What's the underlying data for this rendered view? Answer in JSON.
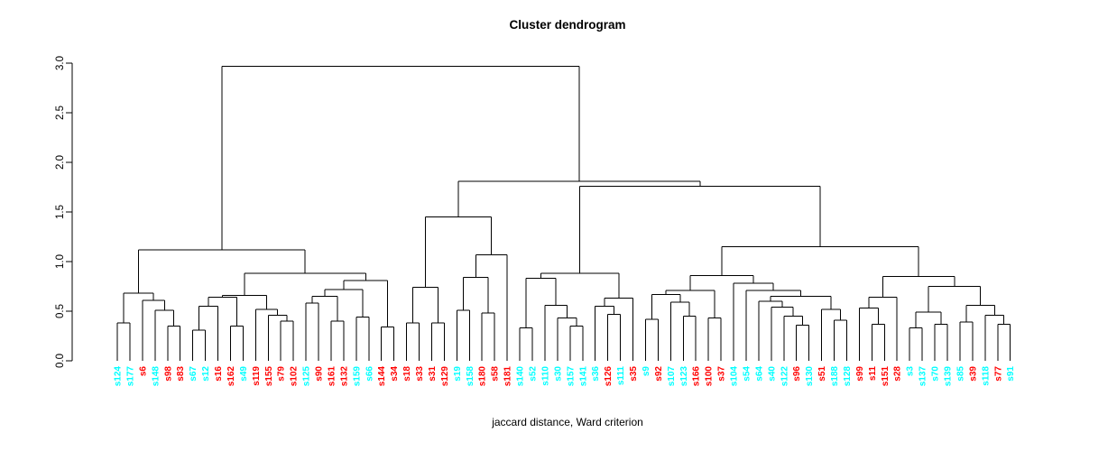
{
  "chart_data": {
    "type": "dendrogram",
    "title": "Cluster dendrogram",
    "caption": "jaccard distance, Ward criterion",
    "y_axis": {
      "ticks": [
        "0.0",
        "0.5",
        "1.0",
        "1.5",
        "2.0",
        "2.5",
        "3.0"
      ],
      "ylim": [
        0.0,
        3.0
      ],
      "grid": false
    },
    "legend_position": "none",
    "line_color": "#000000",
    "leaf_colors": {
      "red": "#FF0000",
      "cyan": "#00FFFF"
    },
    "leaves": [
      {
        "label": "s124",
        "color": "cyan"
      },
      {
        "label": "s177",
        "color": "cyan"
      },
      {
        "label": "s6",
        "color": "red"
      },
      {
        "label": "s148",
        "color": "cyan"
      },
      {
        "label": "s98",
        "color": "red"
      },
      {
        "label": "s83",
        "color": "red"
      },
      {
        "label": "s67",
        "color": "cyan"
      },
      {
        "label": "s12",
        "color": "cyan"
      },
      {
        "label": "s16",
        "color": "red"
      },
      {
        "label": "s162",
        "color": "red"
      },
      {
        "label": "s49",
        "color": "cyan"
      },
      {
        "label": "s119",
        "color": "red"
      },
      {
        "label": "s155",
        "color": "red"
      },
      {
        "label": "s79",
        "color": "red"
      },
      {
        "label": "s102",
        "color": "red"
      },
      {
        "label": "s125",
        "color": "cyan"
      },
      {
        "label": "s90",
        "color": "red"
      },
      {
        "label": "s161",
        "color": "red"
      },
      {
        "label": "s132",
        "color": "red"
      },
      {
        "label": "s159",
        "color": "cyan"
      },
      {
        "label": "s66",
        "color": "cyan"
      },
      {
        "label": "s144",
        "color": "red"
      },
      {
        "label": "s34",
        "color": "red"
      },
      {
        "label": "s18",
        "color": "red"
      },
      {
        "label": "s33",
        "color": "red"
      },
      {
        "label": "s31",
        "color": "red"
      },
      {
        "label": "s129",
        "color": "red"
      },
      {
        "label": "s19",
        "color": "cyan"
      },
      {
        "label": "s158",
        "color": "cyan"
      },
      {
        "label": "s180",
        "color": "red"
      },
      {
        "label": "s58",
        "color": "red"
      },
      {
        "label": "s181",
        "color": "red"
      },
      {
        "label": "s140",
        "color": "cyan"
      },
      {
        "label": "s52",
        "color": "cyan"
      },
      {
        "label": "s110",
        "color": "cyan"
      },
      {
        "label": "s30",
        "color": "cyan"
      },
      {
        "label": "s157",
        "color": "cyan"
      },
      {
        "label": "s141",
        "color": "cyan"
      },
      {
        "label": "s36",
        "color": "cyan"
      },
      {
        "label": "s126",
        "color": "red"
      },
      {
        "label": "s111",
        "color": "cyan"
      },
      {
        "label": "s35",
        "color": "red"
      },
      {
        "label": "s9",
        "color": "cyan"
      },
      {
        "label": "s92",
        "color": "red"
      },
      {
        "label": "s107",
        "color": "cyan"
      },
      {
        "label": "s123",
        "color": "cyan"
      },
      {
        "label": "s166",
        "color": "red"
      },
      {
        "label": "s100",
        "color": "red"
      },
      {
        "label": "s37",
        "color": "red"
      },
      {
        "label": "s104",
        "color": "cyan"
      },
      {
        "label": "s54",
        "color": "cyan"
      },
      {
        "label": "s64",
        "color": "cyan"
      },
      {
        "label": "s40",
        "color": "cyan"
      },
      {
        "label": "s122",
        "color": "cyan"
      },
      {
        "label": "s96",
        "color": "red"
      },
      {
        "label": "s130",
        "color": "cyan"
      },
      {
        "label": "s51",
        "color": "red"
      },
      {
        "label": "s188",
        "color": "cyan"
      },
      {
        "label": "s128",
        "color": "cyan"
      },
      {
        "label": "s99",
        "color": "red"
      },
      {
        "label": "s11",
        "color": "red"
      },
      {
        "label": "s151",
        "color": "red"
      },
      {
        "label": "s28",
        "color": "red"
      },
      {
        "label": "s3",
        "color": "cyan"
      },
      {
        "label": "s137",
        "color": "cyan"
      },
      {
        "label": "s70",
        "color": "cyan"
      },
      {
        "label": "s139",
        "color": "cyan"
      },
      {
        "label": "s85",
        "color": "cyan"
      },
      {
        "label": "s39",
        "color": "red"
      },
      {
        "label": "s118",
        "color": "cyan"
      },
      {
        "label": "s77",
        "color": "red"
      },
      {
        "label": "s91",
        "color": "cyan"
      }
    ],
    "tree": [
      2.97,
      [
        1.12,
        [
          0.68,
          [
            0.38,
            0,
            1
          ],
          [
            0.61,
            2,
            [
              0.51,
              3,
              [
                0.35,
                4,
                5
              ]
            ]
          ]
        ],
        [
          0.88,
          [
            0.66,
            [
              0.64,
              [
                0.55,
                [
                  0.31,
                  6,
                  7
                ],
                8
              ],
              [
                0.35,
                9,
                10
              ]
            ],
            [
              0.52,
              11,
              [
                0.46,
                12,
                [
                  0.4,
                  13,
                  14
                ]
              ]
            ]
          ],
          [
            0.81,
            [
              0.72,
              [
                0.65,
                [
                  0.58,
                  15,
                  16
                ],
                [
                  0.4,
                  17,
                  18
                ]
              ],
              [
                0.44,
                19,
                20
              ]
            ],
            [
              0.34,
              21,
              22
            ]
          ]
        ]
      ],
      [
        1.81,
        [
          1.45,
          [
            0.74,
            [
              0.38,
              23,
              24
            ],
            [
              0.38,
              25,
              26
            ]
          ],
          [
            1.07,
            [
              0.84,
              [
                0.51,
                27,
                28
              ],
              [
                0.48,
                29,
                30
              ]
            ],
            31
          ]
        ],
        [
          1.76,
          [
            0.88,
            [
              0.83,
              [
                0.33,
                32,
                33
              ],
              [
                0.56,
                34,
                [
                  0.43,
                  35,
                  [
                    0.35,
                    36,
                    37
                  ]
                ]
              ]
            ],
            [
              0.63,
              [
                0.55,
                38,
                [
                  0.47,
                  39,
                  40
                ]
              ],
              41
            ]
          ],
          [
            1.15,
            [
              0.86,
              [
                0.71,
                [
                  0.67,
                  [
                    0.42,
                    42,
                    43
                  ],
                  [
                    0.59,
                    44,
                    [
                      0.45,
                      45,
                      46
                    ]
                  ]
                ],
                [
                  0.43,
                  47,
                  48
                ]
              ],
              [
                0.78,
                49,
                [
                  0.71,
                  50,
                  [
                    0.65,
                    [
                      0.6,
                      51,
                      [
                        0.54,
                        52,
                        [
                          0.45,
                          53,
                          [
                            0.36,
                            54,
                            55
                          ]
                        ]
                      ]
                    ],
                    [
                      0.52,
                      56,
                      [
                        0.41,
                        57,
                        58
                      ]
                    ]
                  ]
                ]
              ]
            ],
            [
              0.85,
              [
                0.64,
                [
                  0.53,
                  59,
                  [
                    0.37,
                    60,
                    61
                  ]
                ],
                62
              ],
              [
                0.75,
                [
                  0.49,
                  [
                    0.33,
                    63,
                    64
                  ],
                  [
                    0.37,
                    65,
                    66
                  ]
                ],
                [
                  0.56,
                  [
                    0.39,
                    67,
                    68
                  ],
                  [
                    0.46,
                    69,
                    [
                      0.37,
                      70,
                      71
                    ]
                  ]
                ]
              ]
            ]
          ]
        ]
      ]
    ]
  }
}
